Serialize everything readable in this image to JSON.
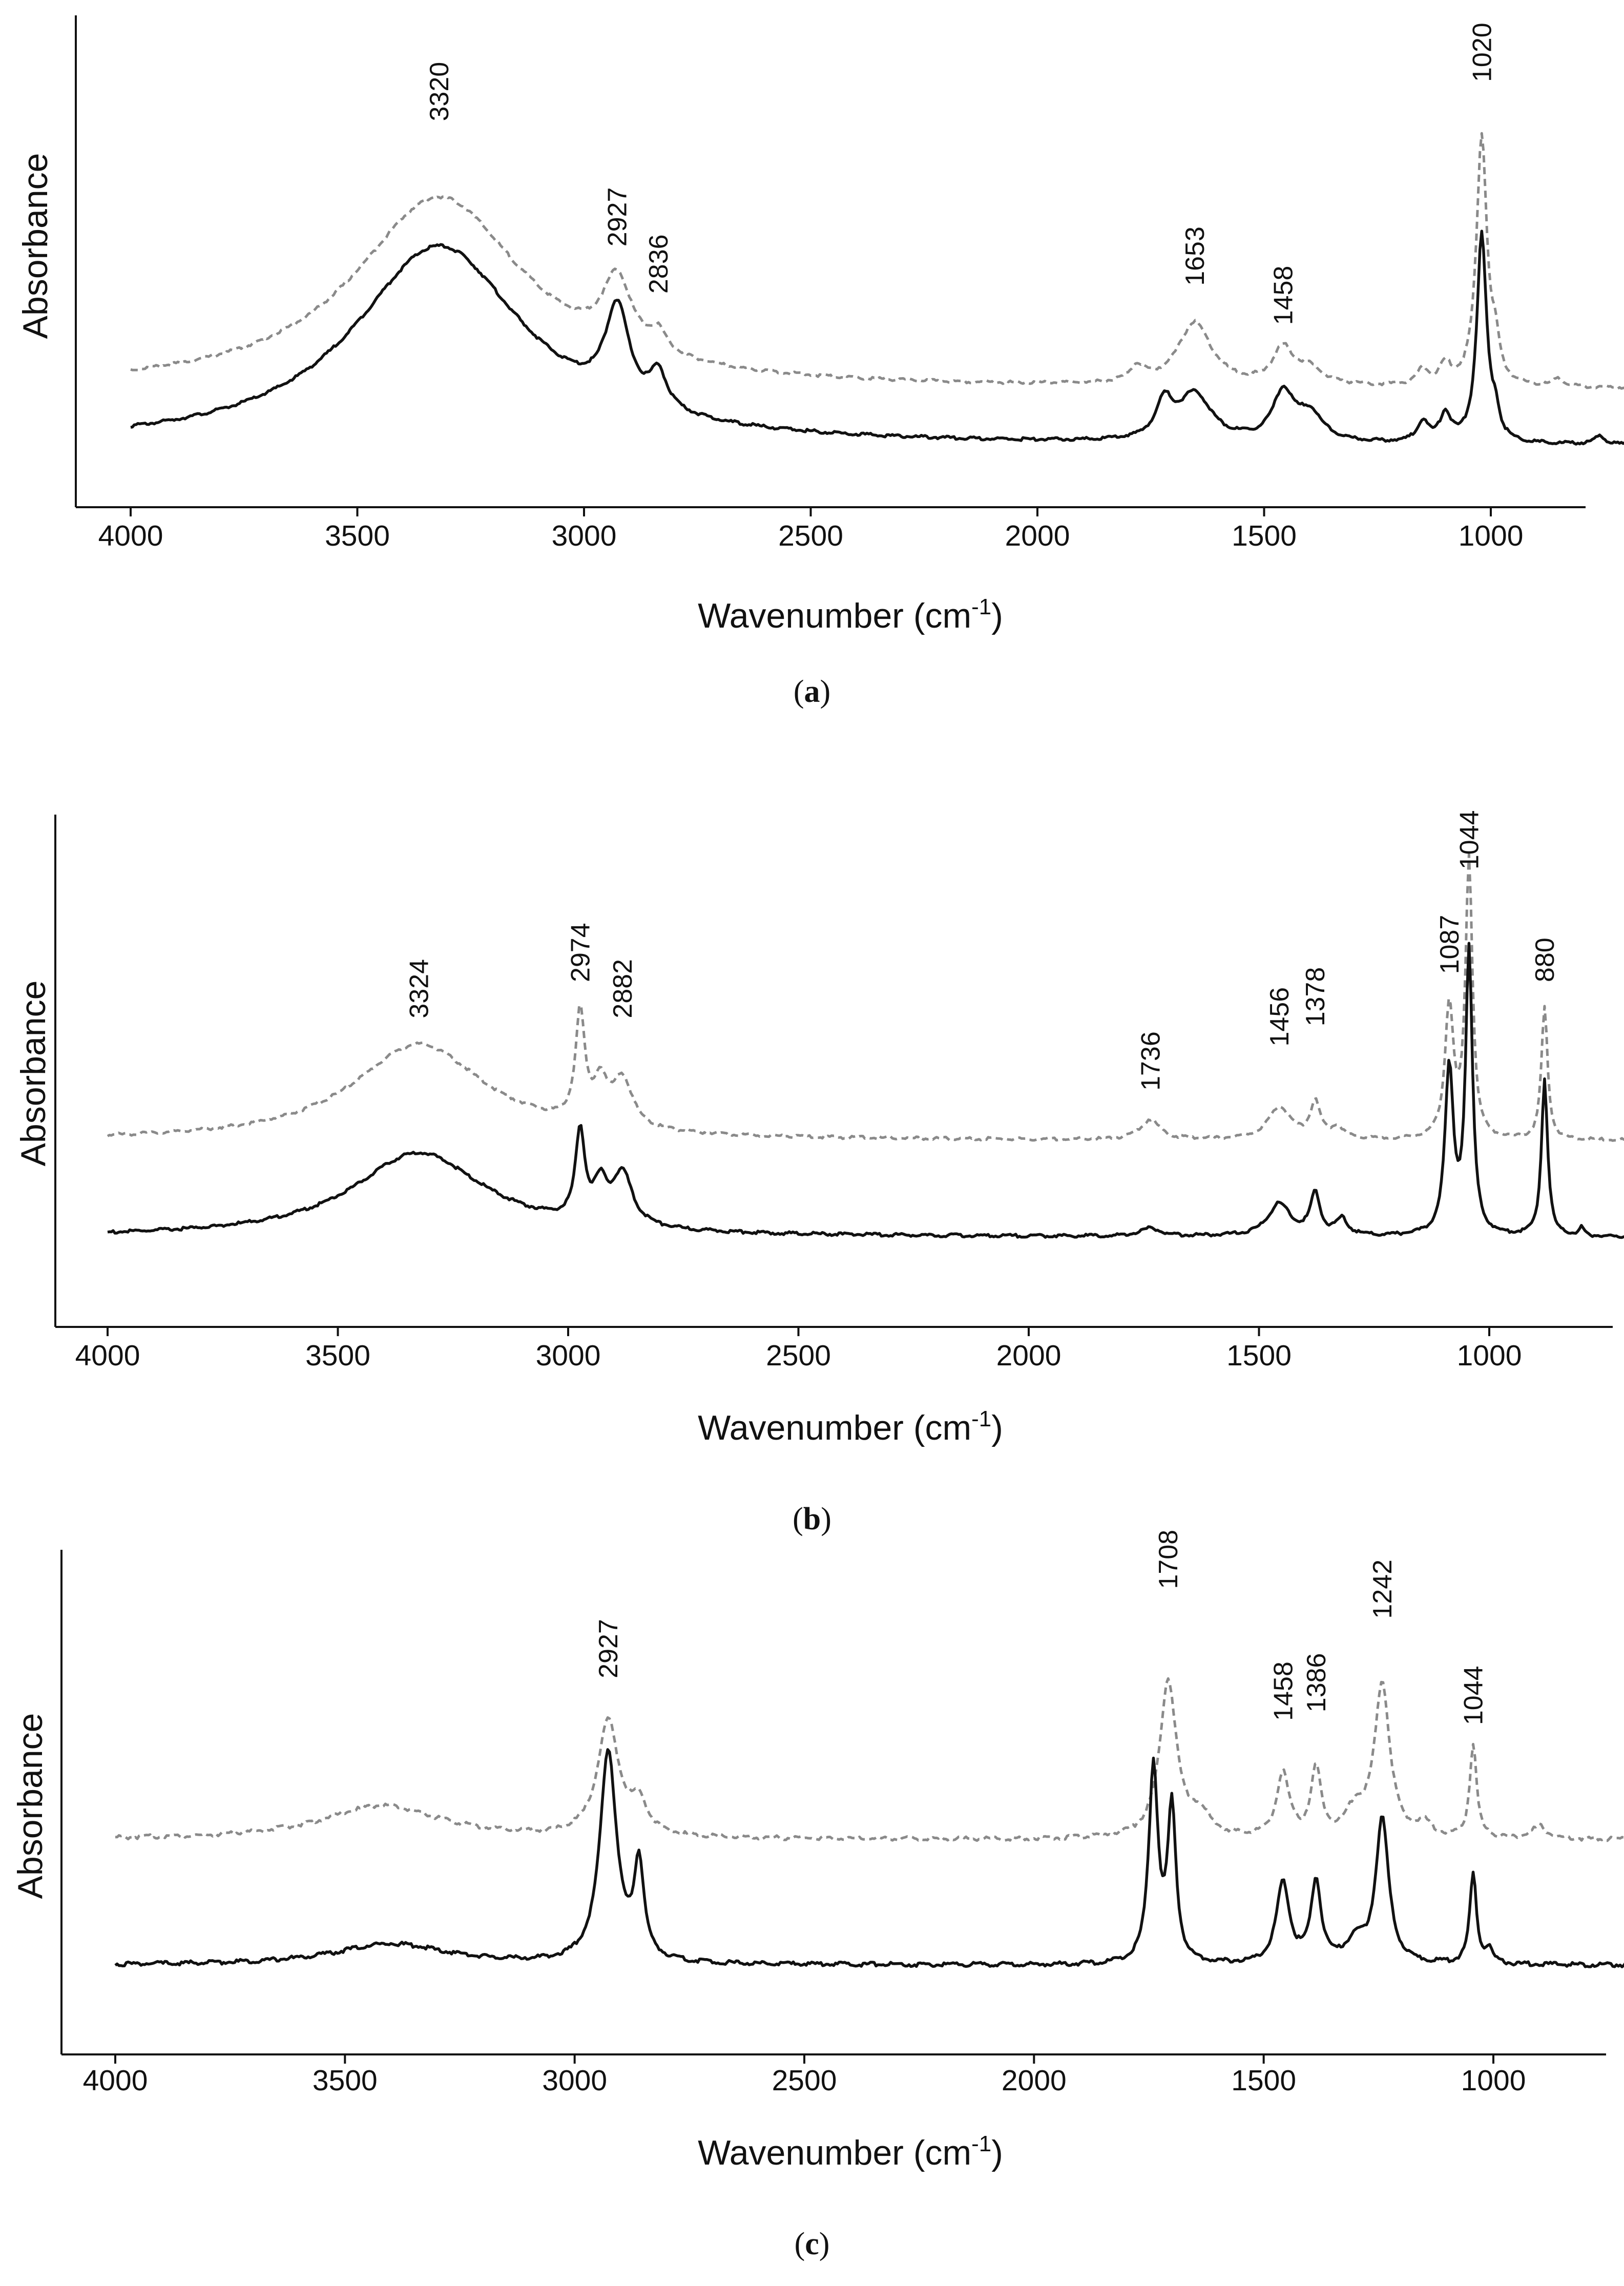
{
  "chart_data": [
    {
      "type": "line",
      "panel": "a",
      "caption": "a",
      "xlabel": "Wavenumber (cm",
      "xlabel_sup": "-1",
      "xlabel_close": ")",
      "ylabel": "Absorbance",
      "xlim": [
        4000,
        700
      ],
      "x_reversed": true,
      "xticks": [
        4000,
        3500,
        3000,
        2500,
        2000,
        1500,
        1000
      ],
      "ylim": [
        0,
        1
      ],
      "grid": false,
      "series": [
        {
          "name": "dashed",
          "style": "dashed",
          "color": "#8a8a8a",
          "baseline": 0.215,
          "noise": 0.004,
          "peaks": [
            [
              3320,
              0.49,
              230
            ],
            [
              2927,
              0.18,
              38
            ],
            [
              2836,
              0.05,
              22
            ],
            [
              1780,
              0.04,
              20
            ],
            [
              1653,
              0.16,
              45
            ],
            [
              1458,
              0.09,
              28
            ],
            [
              1400,
              0.04,
              35
            ],
            [
              1150,
              0.04,
              15
            ],
            [
              1100,
              0.05,
              15
            ],
            [
              1020,
              0.64,
              14
            ],
            [
              990,
              0.08,
              10
            ],
            [
              850,
              0.02,
              15
            ]
          ]
        },
        {
          "name": "solid",
          "style": "solid",
          "color": "#111111",
          "baseline": 0.07,
          "noise": 0.004,
          "peaks": [
            [
              3320,
              0.51,
              230
            ],
            [
              2927,
              0.24,
              32
            ],
            [
              2836,
              0.09,
              22
            ],
            [
              1720,
              0.09,
              22
            ],
            [
              1653,
              0.12,
              45
            ],
            [
              1458,
              0.12,
              28
            ],
            [
              1400,
              0.07,
              35
            ],
            [
              1150,
              0.05,
              15
            ],
            [
              1100,
              0.07,
              15
            ],
            [
              1020,
              0.53,
              13
            ],
            [
              990,
              0.06,
              10
            ],
            [
              760,
              0.02,
              15
            ]
          ]
        }
      ],
      "annotations": [
        {
          "x": 3320,
          "text": "3320",
          "y": 0.9
        },
        {
          "x": 2927,
          "text": "2927",
          "y": 0.58
        },
        {
          "x": 2836,
          "text": "2836",
          "y": 0.46
        },
        {
          "x": 1653,
          "text": "1653",
          "y": 0.48
        },
        {
          "x": 1458,
          "text": "1458",
          "y": 0.38
        },
        {
          "x": 1020,
          "text": "1020",
          "y": 1.0
        }
      ]
    },
    {
      "type": "line",
      "panel": "b",
      "caption": "b",
      "xlabel": "Wavenumber (cm",
      "xlabel_sup": "-1",
      "xlabel_close": ")",
      "ylabel": "Absorbance",
      "xlim": [
        4000,
        700
      ],
      "x_reversed": true,
      "xticks": [
        4000,
        3500,
        3000,
        2500,
        2000,
        1500,
        1000
      ],
      "ylim": [
        0,
        1
      ],
      "grid": false,
      "series": [
        {
          "name": "dashed",
          "style": "dashed",
          "color": "#8a8a8a",
          "baseline": 0.335,
          "noise": 0.004,
          "peaks": [
            [
              3324,
              0.24,
              175
            ],
            [
              2974,
              0.27,
              12
            ],
            [
              2930,
              0.1,
              18
            ],
            [
              2882,
              0.12,
              26
            ],
            [
              1736,
              0.05,
              25
            ],
            [
              1456,
              0.08,
              30
            ],
            [
              1378,
              0.09,
              13
            ],
            [
              1330,
              0.03,
              15
            ],
            [
              1087,
              0.33,
              11
            ],
            [
              1044,
              0.69,
              9
            ],
            [
              880,
              0.33,
              8
            ]
          ]
        },
        {
          "name": "solid",
          "style": "solid",
          "color": "#111111",
          "baseline": 0.095,
          "noise": 0.004,
          "peaks": [
            [
              3324,
              0.21,
              175
            ],
            [
              2974,
              0.22,
              12
            ],
            [
              2930,
              0.09,
              18
            ],
            [
              2882,
              0.13,
              26
            ],
            [
              1736,
              0.02,
              25
            ],
            [
              1456,
              0.08,
              30
            ],
            [
              1378,
              0.1,
              13
            ],
            [
              1320,
              0.04,
              15
            ],
            [
              1087,
              0.41,
              11
            ],
            [
              1044,
              0.7,
              9
            ],
            [
              880,
              0.39,
              8
            ],
            [
              800,
              0.02,
              6
            ]
          ]
        }
      ],
      "annotations": [
        {
          "x": 3324,
          "text": "3324",
          "y": 0.64
        },
        {
          "x": 2974,
          "text": "2974",
          "y": 0.73
        },
        {
          "x": 2882,
          "text": "2882",
          "y": 0.64
        },
        {
          "x": 1736,
          "text": "1736",
          "y": 0.46
        },
        {
          "x": 1456,
          "text": "1456",
          "y": 0.57
        },
        {
          "x": 1378,
          "text": "1378",
          "y": 0.62
        },
        {
          "x": 1087,
          "text": "1087",
          "y": 0.75
        },
        {
          "x": 1044,
          "text": "1044",
          "y": 1.01
        },
        {
          "x": 880,
          "text": "880",
          "y": 0.73
        }
      ]
    },
    {
      "type": "line",
      "panel": "c",
      "caption": "c",
      "xlabel": "Wavenumber (cm",
      "xlabel_sup": "-1",
      "xlabel_close": ")",
      "ylabel": "Absorbance",
      "xlim": [
        4000,
        700
      ],
      "x_reversed": true,
      "xticks": [
        4000,
        3500,
        3000,
        2500,
        2000,
        1500,
        1000
      ],
      "ylim": [
        0,
        1
      ],
      "grid": false,
      "series": [
        {
          "name": "dashed",
          "style": "dashed",
          "color": "#8a8a8a",
          "baseline": 0.36,
          "noise": 0.005,
          "peaks": [
            [
              3420,
              0.08,
              160
            ],
            [
              2927,
              0.27,
              28
            ],
            [
              2860,
              0.07,
              22
            ],
            [
              1708,
              0.37,
              22
            ],
            [
              1640,
              0.05,
              30
            ],
            [
              1458,
              0.15,
              16
            ],
            [
              1386,
              0.16,
              13
            ],
            [
              1300,
              0.06,
              25
            ],
            [
              1242,
              0.36,
              20
            ],
            [
              1150,
              0.03,
              20
            ],
            [
              1044,
              0.22,
              9
            ],
            [
              900,
              0.03,
              20
            ]
          ]
        },
        {
          "name": "solid",
          "style": "solid",
          "color": "#111111",
          "baseline": 0.065,
          "noise": 0.005,
          "peaks": [
            [
              3400,
              0.05,
              150
            ],
            [
              2927,
              0.5,
              22
            ],
            [
              2860,
              0.22,
              13
            ],
            [
              1740,
              0.46,
              12
            ],
            [
              1700,
              0.36,
              11
            ],
            [
              1458,
              0.19,
              17
            ],
            [
              1386,
              0.19,
              13
            ],
            [
              1300,
              0.05,
              25
            ],
            [
              1242,
              0.34,
              17
            ],
            [
              1044,
              0.21,
              9
            ],
            [
              1010,
              0.03,
              10
            ]
          ]
        }
      ],
      "annotations": [
        {
          "x": 2927,
          "text": "2927",
          "y": 0.74
        },
        {
          "x": 1708,
          "text": "1708",
          "y": 0.95
        },
        {
          "x": 1458,
          "text": "1458",
          "y": 0.64
        },
        {
          "x": 1386,
          "text": "1386",
          "y": 0.66
        },
        {
          "x": 1242,
          "text": "1242",
          "y": 0.88
        },
        {
          "x": 1044,
          "text": "1044",
          "y": 0.63
        }
      ]
    }
  ]
}
